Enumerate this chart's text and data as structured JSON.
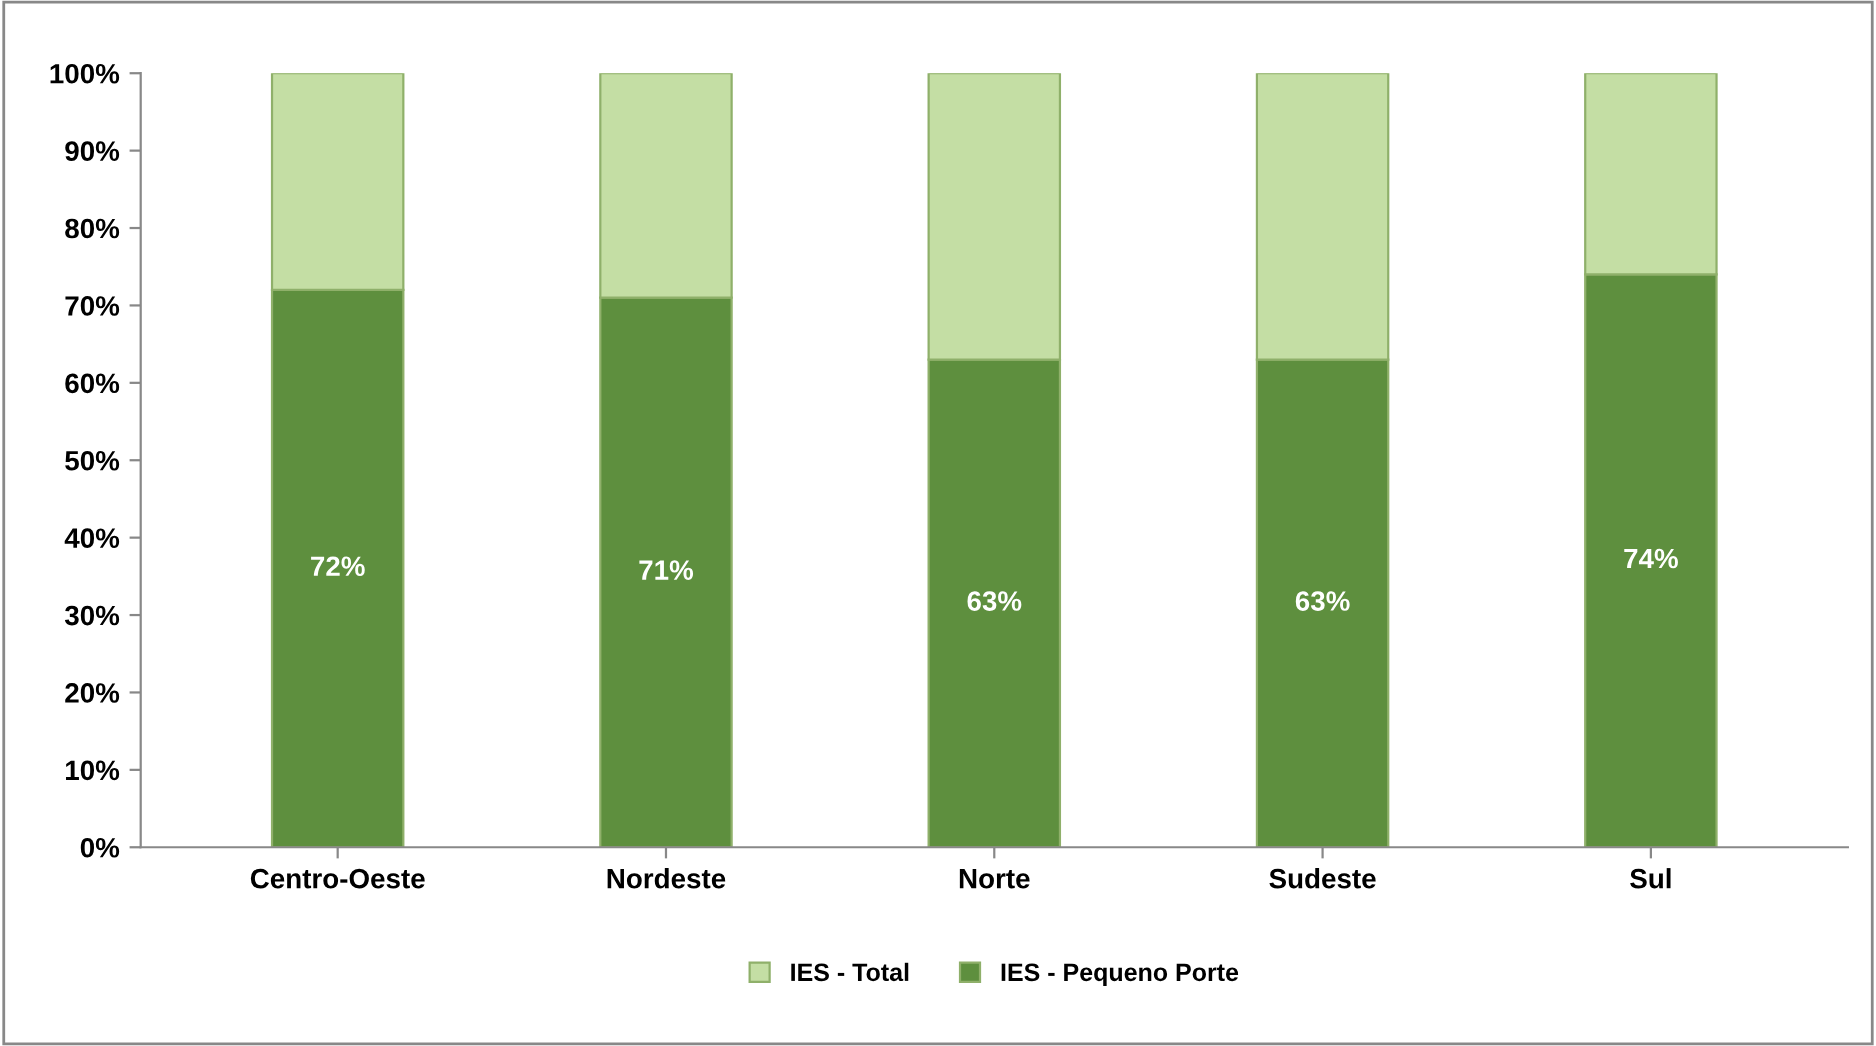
{
  "chart_data": {
    "type": "bar",
    "stacked": true,
    "categories": [
      "Centro-Oeste",
      "Nordeste",
      "Norte",
      "Sudeste",
      "Sul"
    ],
    "series": [
      {
        "name": "IES - Pequeno Porte",
        "color": "#5e8f3e",
        "values": [
          72,
          71,
          63,
          63,
          74
        ],
        "value_labels": [
          "72%",
          "71%",
          "63%",
          "63%",
          "74%"
        ]
      },
      {
        "name": "IES - Total",
        "color": "#c4dea4",
        "values": [
          28,
          29,
          37,
          37,
          26
        ]
      }
    ],
    "ylim": [
      0,
      100
    ],
    "yticks": [
      {
        "value": 0,
        "label": "0%"
      },
      {
        "value": 10,
        "label": "10%"
      },
      {
        "value": 20,
        "label": "20%"
      },
      {
        "value": 30,
        "label": "30%"
      },
      {
        "value": 40,
        "label": "40%"
      },
      {
        "value": 50,
        "label": "50%"
      },
      {
        "value": 60,
        "label": "60%"
      },
      {
        "value": 70,
        "label": "70%"
      },
      {
        "value": 80,
        "label": "80%"
      },
      {
        "value": 90,
        "label": "90%"
      },
      {
        "value": 100,
        "label": "100%"
      }
    ],
    "grid": false,
    "legend": "bottom"
  }
}
